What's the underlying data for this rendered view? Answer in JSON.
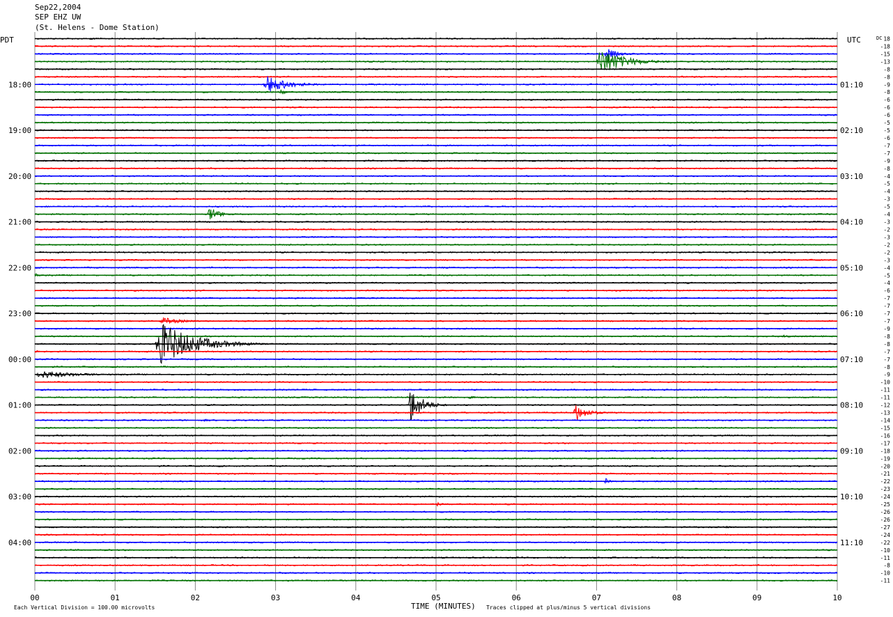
{
  "header": {
    "date": "Sep22,2004",
    "station_code": "SEP EHZ UW",
    "station_name": "(St. Helens - Dome Station)"
  },
  "chart_data": {
    "type": "line",
    "title": "Sep22,2004 SEP EHZ UW (St. Helens - Dome Station)",
    "xlabel": "TIME (MINUTES)",
    "left_axis_label": "PDT",
    "right_axis_label": "UTC",
    "dc_label": "DC",
    "xlim": [
      0,
      10
    ],
    "x_ticks": [
      "00",
      "01",
      "02",
      "03",
      "04",
      "05",
      "06",
      "07",
      "08",
      "09",
      "10"
    ],
    "grid": "vertical lines each minute",
    "trace_colors": [
      "#000000",
      "#ff0000",
      "#0000ff",
      "#007000"
    ],
    "num_traces": 72,
    "trace_interval_minutes": 10,
    "pdt_labels": [
      {
        "row": 6,
        "text": "18:00"
      },
      {
        "row": 12,
        "text": "19:00"
      },
      {
        "row": 18,
        "text": "20:00"
      },
      {
        "row": 24,
        "text": "21:00"
      },
      {
        "row": 30,
        "text": "22:00"
      },
      {
        "row": 36,
        "text": "23:00"
      },
      {
        "row": 42,
        "text": "00:00"
      },
      {
        "row": 48,
        "text": "01:00"
      },
      {
        "row": 54,
        "text": "02:00"
      },
      {
        "row": 60,
        "text": "03:00"
      },
      {
        "row": 66,
        "text": "04:00"
      }
    ],
    "utc_labels": [
      {
        "row": 6,
        "text": "01:10"
      },
      {
        "row": 12,
        "text": "02:10"
      },
      {
        "row": 18,
        "text": "03:10"
      },
      {
        "row": 24,
        "text": "04:10"
      },
      {
        "row": 30,
        "text": "05:10"
      },
      {
        "row": 36,
        "text": "06:10"
      },
      {
        "row": 42,
        "text": "07:10"
      },
      {
        "row": 48,
        "text": "08:10"
      },
      {
        "row": 54,
        "text": "09:10"
      },
      {
        "row": 60,
        "text": "10:10"
      },
      {
        "row": 66,
        "text": "11:10"
      }
    ],
    "dc_offsets": [
      "18",
      "-18",
      "-15",
      "-13",
      "-8",
      "-8",
      "-9",
      "-8",
      "-6",
      "-6",
      "-6",
      "-5",
      "-5",
      "-6",
      "-7",
      "-7",
      "-9",
      "-8",
      "-4",
      "-5",
      "-4",
      "-3",
      "-5",
      "-4",
      "-3",
      "-2",
      "-3",
      "-2",
      "-2",
      "-3",
      "-4",
      "-5",
      "-4",
      "-6",
      "-7",
      "-7",
      "-7",
      "-7",
      "-9",
      "-8",
      "-8",
      "-7",
      "-7",
      "-8",
      "-9",
      "-10",
      "-11",
      "-11",
      "-12",
      "-13",
      "-14",
      "-15",
      "-16",
      "-17",
      "-18",
      "-19",
      "-20",
      "-21",
      "-22",
      "-23",
      "-24",
      "-25",
      "-26",
      "-26",
      "-27",
      "-24",
      "-22",
      "-10",
      "-11",
      "-8",
      "-10",
      "-11"
    ],
    "events": [
      {
        "row": 0,
        "minute": 0.68,
        "amp": 0.35,
        "dur": 0.12
      },
      {
        "row": 2,
        "minute": 7.1,
        "amp": 0.9,
        "dur": 0.5
      },
      {
        "row": 3,
        "minute": 7.0,
        "amp": 2.2,
        "dur": 1.0
      },
      {
        "row": 6,
        "minute": 2.85,
        "amp": 1.4,
        "dur": 0.9
      },
      {
        "row": 7,
        "minute": 3.05,
        "amp": 0.5,
        "dur": 0.2
      },
      {
        "row": 23,
        "minute": 2.15,
        "amp": 1.3,
        "dur": 0.4
      },
      {
        "row": 24,
        "minute": 2.55,
        "amp": 0.2,
        "dur": 0.2
      },
      {
        "row": 31,
        "minute": 0.0,
        "amp": 0.3,
        "dur": 0.2
      },
      {
        "row": 33,
        "minute": 5.0,
        "amp": 0.2,
        "dur": 0.3
      },
      {
        "row": 37,
        "minute": 1.55,
        "amp": 0.6,
        "dur": 0.8
      },
      {
        "row": 39,
        "minute": 9.3,
        "amp": 0.2,
        "dur": 0.6
      },
      {
        "row": 40,
        "minute": 1.5,
        "amp": 3.5,
        "dur": 1.4
      },
      {
        "row": 41,
        "minute": 0.0,
        "amp": 0.4,
        "dur": 0.1
      },
      {
        "row": 44,
        "minute": 0.0,
        "amp": 0.6,
        "dur": 1.6
      },
      {
        "row": 43,
        "minute": 10.0,
        "amp": 0.3,
        "dur": 0.1
      },
      {
        "row": 47,
        "minute": 5.4,
        "amp": 0.2,
        "dur": 0.4
      },
      {
        "row": 48,
        "minute": 4.65,
        "amp": 3.0,
        "dur": 0.5
      },
      {
        "row": 49,
        "minute": 6.7,
        "amp": 1.6,
        "dur": 0.5
      },
      {
        "row": 50,
        "minute": 2.1,
        "amp": 0.3,
        "dur": 0.15
      },
      {
        "row": 58,
        "minute": 7.1,
        "amp": 0.5,
        "dur": 0.2
      },
      {
        "row": 61,
        "minute": 5.0,
        "amp": 0.3,
        "dur": 0.3
      },
      {
        "row": 60,
        "minute": 5.8,
        "amp": 0.2,
        "dur": 0.2
      },
      {
        "row": 64,
        "minute": 8.6,
        "amp": 0.25,
        "dur": 0.3
      },
      {
        "row": 63,
        "minute": 9.07,
        "amp": 0.6,
        "dur": 0.02
      }
    ]
  },
  "footer": {
    "scale_note": "Each Vertical Division =  100.00 microvolts",
    "xlabel": "TIME (MINUTES)",
    "clip_note": "Traces clipped at plus/minus 5 vertical divisions"
  }
}
